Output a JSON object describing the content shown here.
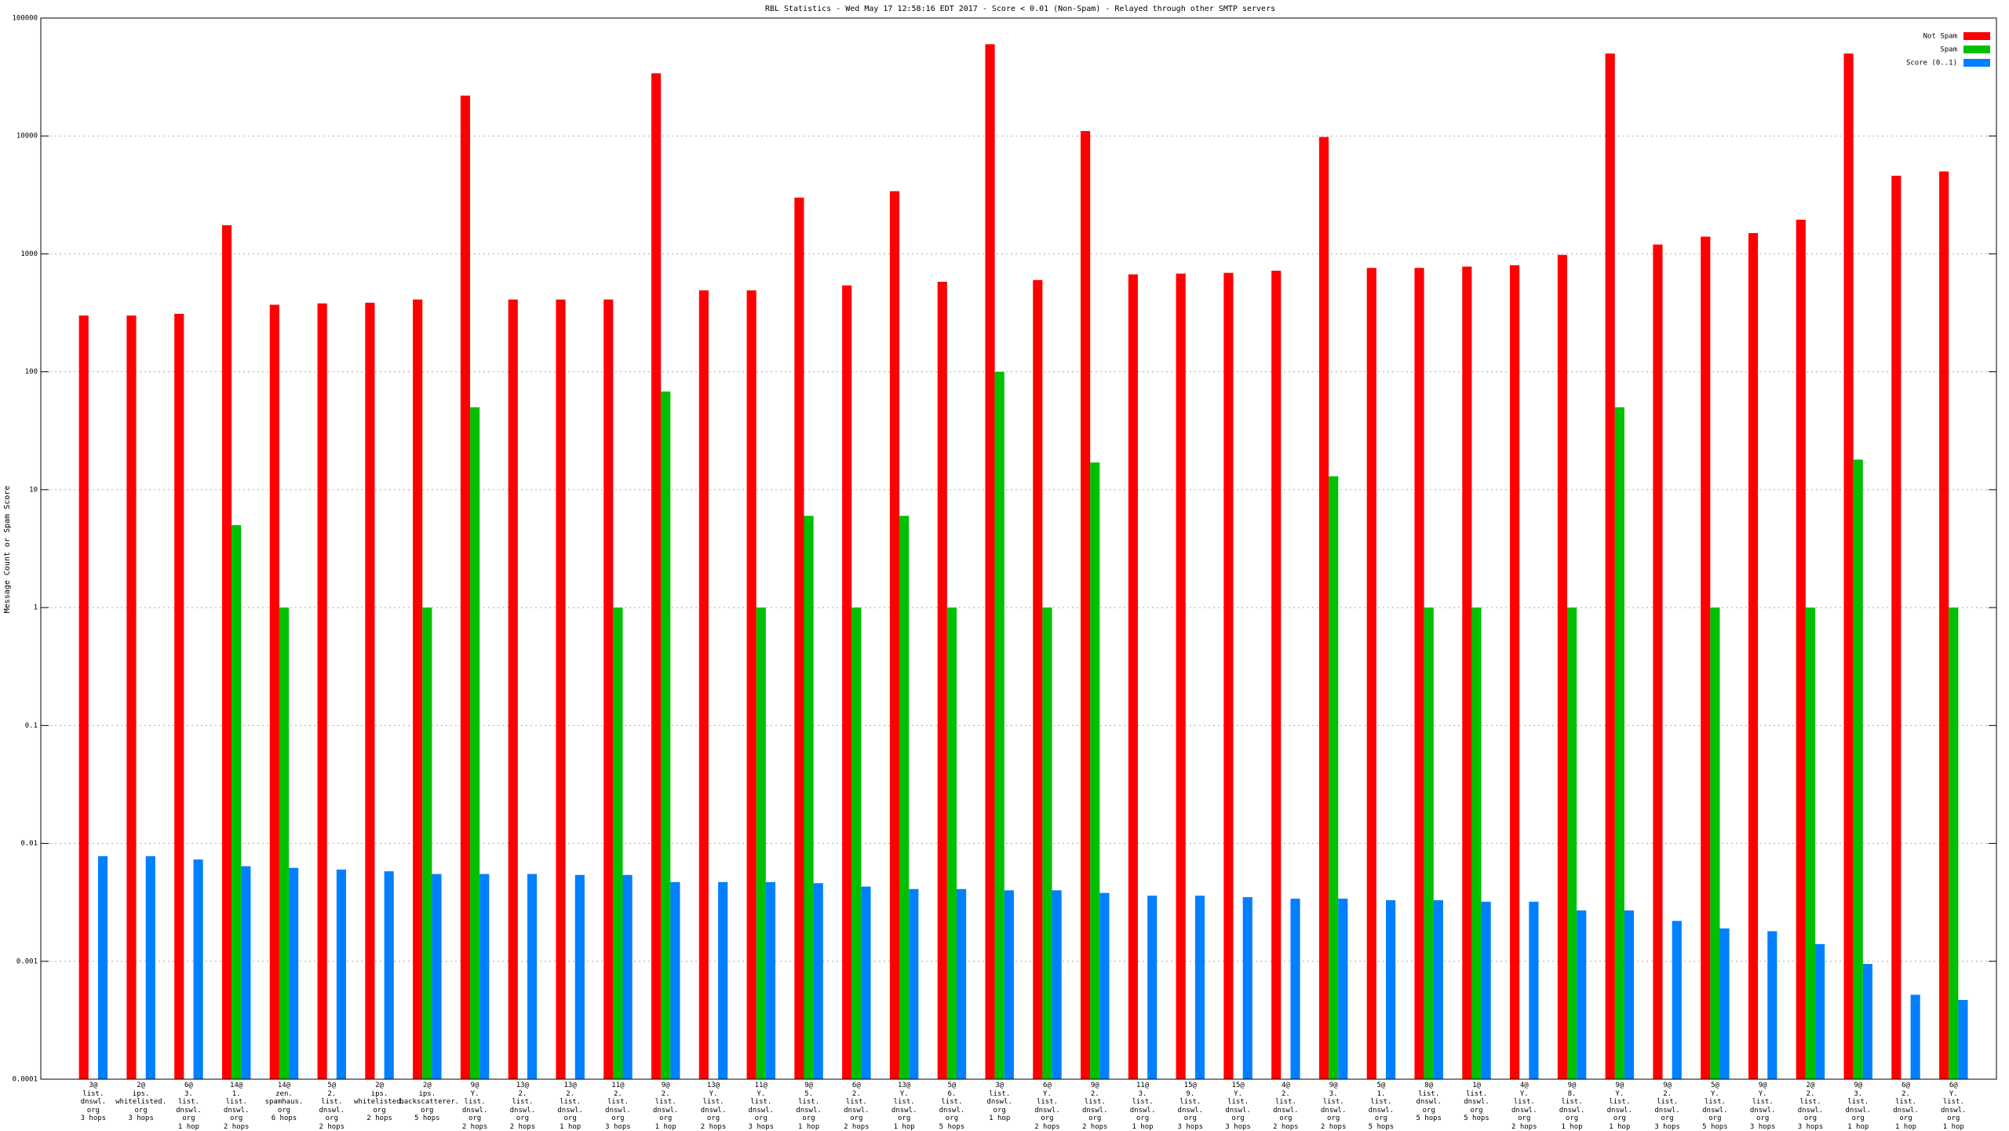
{
  "chart_data": {
    "type": "bar",
    "log": true,
    "grid": true,
    "legend": "top-right",
    "title": "RBL Statistics - Wed May 17 12:58:16 EDT 2017 - Score < 0.01 (Non-Spam) - Relayed through other SMTP servers",
    "ylabel": "Message Count or Spam Score",
    "ylim": [
      0.0001,
      100000
    ],
    "yticks": [
      0.0001,
      0.001,
      0.01,
      0.1,
      1,
      10,
      100,
      1000,
      10000,
      100000
    ],
    "categories": [
      "3@\nlist.\ndnswl.\norg\n3 hops",
      "2@\nips.\nwhitelisted.\norg\n3 hops",
      "6@\n3.\nlist.\ndnswl.\norg\n1 hop",
      "14@\n1.\nlist.\ndnswl.\norg\n2 hops",
      "14@\nzen.\nspamhaus.\norg\n6 hops",
      "5@\n2.\nlist.\ndnswl.\norg\n2 hops",
      "2@\nips.\nwhitelisted.\norg\n2 hops",
      "2@\nips.\nbackscatterer.\norg\n5 hops",
      "9@\nY.\nlist.\ndnswl.\norg\n2 hops",
      "13@\n2.\nlist.\ndnswl.\norg\n2 hops",
      "13@\n2.\nlist.\ndnswl.\norg\n1 hop",
      "11@\n2.\nlist.\ndnswl.\norg\n3 hops",
      "9@\n2.\nlist.\ndnswl.\norg\n1 hop",
      "13@\nY.\nlist.\ndnswl.\norg\n2 hops",
      "11@\nY.\nlist.\ndnswl.\norg\n3 hops",
      "9@\n5.\nlist.\ndnswl.\norg\n1 hop",
      "6@\n2.\nlist.\ndnswl.\norg\n2 hops",
      "13@\nY.\nlist.\ndnswl.\norg\n1 hop",
      "5@\n6.\nlist.\ndnswl.\norg\n5 hops",
      "3@\nlist.\ndnswl.\norg\n1 hop",
      "6@\nY.\nlist.\ndnswl.\norg\n2 hops",
      "9@\n2.\nlist.\ndnswl.\norg\n2 hops",
      "11@\n3.\nlist.\ndnswl.\norg\n1 hop",
      "15@\n9.\nlist.\ndnswl.\norg\n3 hops",
      "15@\nY.\nlist.\ndnswl.\norg\n3 hops",
      "4@\n2.\nlist.\ndnswl.\norg\n2 hops",
      "9@\n3.\nlist.\ndnswl.\norg\n2 hops",
      "5@\n1.\nlist.\ndnswl.\norg\n5 hops",
      "8@\nlist.\ndnswl.\norg\n5 hops",
      "1@\nlist.\ndnswl.\norg\n5 hops",
      "4@\nY.\nlist.\ndnswl.\norg\n2 hops",
      "9@\n8.\nlist.\ndnswl.\norg\n1 hop",
      "9@\nY.\nlist.\ndnswl.\norg\n1 hop",
      "9@\n2.\nlist.\ndnswl.\norg\n3 hops",
      "5@\nY.\nlist.\ndnswl.\norg\n5 hops",
      "9@\nY.\nlist.\ndnswl.\norg\n3 hops",
      "2@\n2.\nlist.\ndnswl.\norg\n3 hops",
      "9@\n3.\nlist.\ndnswl.\norg\n1 hop",
      "6@\n2.\nlist.\ndnswl.\norg\n1 hop",
      "6@\nY.\nlist.\ndnswl.\norg\n1 hop"
    ],
    "series": [
      {
        "name": "Not Spam",
        "color": "#ff0000",
        "values": [
          300,
          300,
          310,
          1750,
          370,
          380,
          385,
          410,
          22000,
          410,
          410,
          410,
          34000,
          490,
          490,
          3000,
          540,
          3400,
          580,
          60000,
          600,
          11000,
          670,
          680,
          690,
          720,
          9800,
          760,
          760,
          780,
          800,
          980,
          50000,
          1200,
          1400,
          1500,
          1950,
          50000,
          4600,
          5000
        ]
      },
      {
        "name": "Spam",
        "color": "#00c000",
        "values": [
          null,
          null,
          null,
          5,
          1,
          null,
          null,
          1,
          50,
          null,
          null,
          1,
          68,
          null,
          1,
          6,
          1,
          6,
          1,
          100,
          1,
          17,
          null,
          null,
          null,
          null,
          13,
          null,
          1,
          1,
          null,
          1,
          50,
          null,
          1,
          null,
          1,
          18,
          null,
          1
        ]
      },
      {
        "name": "Score (0..1)",
        "color": "#0080ff",
        "values": [
          0.0078,
          0.0078,
          0.0073,
          0.0064,
          0.0062,
          0.006,
          0.0058,
          0.0055,
          0.0055,
          0.0055,
          0.0054,
          0.0054,
          0.0047,
          0.0047,
          0.0047,
          0.0046,
          0.0043,
          0.0041,
          0.0041,
          0.004,
          0.004,
          0.0038,
          0.0036,
          0.0036,
          0.0035,
          0.0034,
          0.0034,
          0.0033,
          0.0033,
          0.0032,
          0.0032,
          0.0027,
          0.0027,
          0.0022,
          0.0019,
          0.0018,
          0.0014,
          0.00095,
          0.00052,
          0.00047
        ]
      }
    ]
  }
}
